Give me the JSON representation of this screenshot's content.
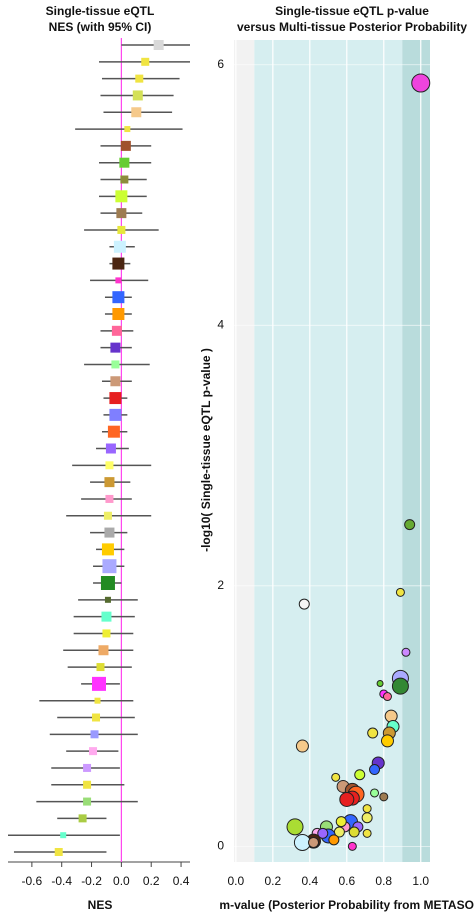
{
  "chart_data": [
    {
      "type": "forest",
      "title": [
        "Single-tissue eQTL",
        "NES (with 95% CI)"
      ],
      "xlabel": "NES",
      "xlim": [
        -0.76,
        0.46
      ],
      "xticks": [
        -0.6,
        -0.4,
        -0.2,
        {
          "value": 0,
          "label": "0.0"
        },
        0.2,
        0.4
      ],
      "reference_line": 0,
      "reference_color": "#ff44ee",
      "ci_color": "#555555",
      "values": [
        0.25,
        0.16,
        0.12,
        0.11,
        0.1,
        0.04,
        0.03,
        0.02,
        0.02,
        0.0,
        0.0,
        0.0,
        -0.01,
        -0.02,
        -0.02,
        -0.02,
        -0.02,
        -0.03,
        -0.04,
        -0.04,
        -0.04,
        -0.04,
        -0.04,
        -0.05,
        -0.07,
        -0.08,
        -0.08,
        -0.08,
        -0.09,
        -0.08,
        -0.09,
        -0.08,
        -0.09,
        -0.09,
        -0.1,
        -0.1,
        -0.12,
        -0.14,
        -0.15,
        -0.16,
        -0.17,
        -0.18,
        -0.19,
        -0.23,
        -0.23,
        -0.23,
        -0.26,
        -0.39,
        -0.42
      ],
      "ci_low": [
        0.0,
        -0.15,
        -0.13,
        -0.14,
        -0.12,
        -0.31,
        -0.14,
        -0.15,
        -0.14,
        -0.15,
        -0.14,
        -0.25,
        -0.08,
        -0.08,
        -0.21,
        -0.11,
        -0.11,
        -0.14,
        -0.14,
        -0.25,
        -0.13,
        -0.12,
        -0.12,
        -0.13,
        -0.17,
        -0.33,
        -0.21,
        -0.27,
        -0.37,
        -0.21,
        -0.17,
        -0.19,
        -0.19,
        -0.29,
        -0.32,
        -0.32,
        -0.39,
        -0.36,
        -0.27,
        -0.55,
        -0.43,
        -0.48,
        -0.37,
        -0.47,
        -0.47,
        -0.57,
        -0.43,
        -0.76,
        -0.72
      ],
      "ci_high": [
        0.46,
        0.46,
        0.39,
        0.35,
        0.34,
        0.41,
        0.2,
        0.2,
        0.17,
        0.17,
        0.14,
        0.25,
        0.09,
        0.06,
        0.18,
        0.07,
        0.07,
        0.08,
        0.07,
        0.19,
        0.07,
        0.04,
        0.04,
        0.04,
        0.05,
        0.2,
        0.06,
        0.07,
        0.2,
        0.04,
        0.02,
        0.02,
        0.0,
        0.11,
        0.09,
        0.08,
        0.08,
        0.07,
        -0.01,
        0.08,
        0.09,
        0.11,
        -0.02,
        -0.01,
        0.02,
        0.11,
        -0.1,
        -0.01,
        -0.1
      ],
      "colors": [
        "#d9d9d9",
        "#f0e442",
        "#f0e442",
        "#d4e157",
        "#f5c98b",
        "#f0e442",
        "#a0522d",
        "#66cc33",
        "#8c8c3c",
        "#ccff33",
        "#9e7c52",
        "#e6e63c",
        "#ccf2ff",
        "#4a2511",
        "#ff33cc",
        "#3366ff",
        "#ff9900",
        "#ff6699",
        "#6633cc",
        "#99ff99",
        "#cc9977",
        "#e62020",
        "#7f7fff",
        "#ff6622",
        "#9966ff",
        "#ffff66",
        "#cc9933",
        "#ff99cc",
        "#eeee66",
        "#aaaaaa",
        "#ffcc00",
        "#aaaaff",
        "#228b22",
        "#556b2f",
        "#66ffcc",
        "#eeee33",
        "#eeaa66",
        "#dddd33",
        "#ff33ff",
        "#f0e442",
        "#f0e442",
        "#9999ff",
        "#ffaaee",
        "#cc99ff",
        "#f0e442",
        "#99dd77",
        "#aacc44",
        "#66ffcc",
        "#f0e442"
      ],
      "sizes": [
        5,
        4,
        4,
        5,
        5,
        3,
        5,
        5,
        4,
        6,
        5,
        4,
        6,
        6,
        3,
        6,
        6,
        5,
        5,
        4,
        5,
        6,
        6,
        6,
        5,
        4,
        5,
        4,
        4,
        5,
        6,
        7,
        7,
        3,
        5,
        4,
        5,
        4,
        7,
        3,
        4,
        4,
        4,
        4,
        4,
        4,
        4,
        3,
        4
      ]
    },
    {
      "type": "scatter",
      "title": [
        "Single-tissue eQTL p-value",
        "versus Multi-tissue Posterior Probability"
      ],
      "xlabel": "m-value (Posterior Probability from METASOFT)",
      "ylabel": "-log10( Single-tissue eQTL p-value )",
      "xlim": [
        -0.01,
        1.05
      ],
      "ylim": [
        -0.12,
        6.19
      ],
      "xticks": [
        {
          "value": 0,
          "label": "0.0"
        },
        0.2,
        0.4,
        0.6,
        0.8,
        {
          "value": 1,
          "label": "1.0"
        }
      ],
      "yticks": [
        0,
        2,
        4,
        6
      ],
      "grid": true,
      "band_edges": [
        0.1,
        0.9
      ],
      "band_colors": [
        "#f2f2f2",
        "#d6eef0",
        "#b9dcdc"
      ],
      "x": [
        1.0,
        0.94,
        0.37,
        0.89,
        0.92,
        0.89,
        0.89,
        0.78,
        0.8,
        0.82,
        0.84,
        0.85,
        0.83,
        0.82,
        0.74,
        0.36,
        0.77,
        0.75,
        0.67,
        0.54,
        0.58,
        0.63,
        0.65,
        0.63,
        0.6,
        0.75,
        0.8,
        0.71,
        0.71,
        0.62,
        0.59,
        0.66,
        0.57,
        0.71,
        0.64,
        0.49,
        0.56,
        0.44,
        0.5,
        0.47,
        0.42,
        0.32,
        0.36,
        0.53,
        0.63,
        0.42
      ],
      "y": [
        5.86,
        2.47,
        1.86,
        1.95,
        1.49,
        1.29,
        1.23,
        1.25,
        1.17,
        1.15,
        1.0,
        0.92,
        0.87,
        0.81,
        0.87,
        0.77,
        0.64,
        0.59,
        0.55,
        0.53,
        0.46,
        0.43,
        0.4,
        0.37,
        0.36,
        0.41,
        0.38,
        0.29,
        0.22,
        0.19,
        0.15,
        0.15,
        0.19,
        0.1,
        0.11,
        0.15,
        0.11,
        0.1,
        0.08,
        0.1,
        0.04,
        0.15,
        0.03,
        0.05,
        0.0,
        0.03
      ],
      "colors": [
        "#ee44dd",
        "#66aa33",
        "#f5f5f5",
        "#f0e442",
        "#cc88ff",
        "#aaaaff",
        "#338833",
        "#66cc33",
        "#ff33ff",
        "#ff6699",
        "#f5c98b",
        "#66ffcc",
        "#cc9933",
        "#ffcc00",
        "#f0e442",
        "#f5c98b",
        "#6633cc",
        "#3366ff",
        "#ccff33",
        "#f0e442",
        "#cc9977",
        "#a0522d",
        "#ff6622",
        "#e62020",
        "#e62020",
        "#99ff99",
        "#9e7c52",
        "#f0e442",
        "#eeee66",
        "#3366ff",
        "#ff99cc",
        "#9966ff",
        "#eeee33",
        "#f0e442",
        "#dddd33",
        "#99dd77",
        "#eeee66",
        "#ffaaee",
        "#3366ff",
        "#9966ff",
        "#4a2511",
        "#aadd33",
        "#ccf2ff",
        "#ff9900",
        "#ff33cc",
        "#cc9977"
      ],
      "sizes": [
        9,
        5,
        5,
        4,
        4,
        8,
        8,
        3,
        4,
        4,
        6,
        6,
        6,
        6,
        5,
        6,
        6,
        5,
        5,
        4,
        6,
        7,
        8,
        7,
        7,
        4,
        4,
        4,
        5,
        7,
        5,
        5,
        5,
        4,
        5,
        6,
        5,
        5,
        7,
        5,
        7,
        8,
        8,
        5,
        4,
        5
      ]
    }
  ]
}
